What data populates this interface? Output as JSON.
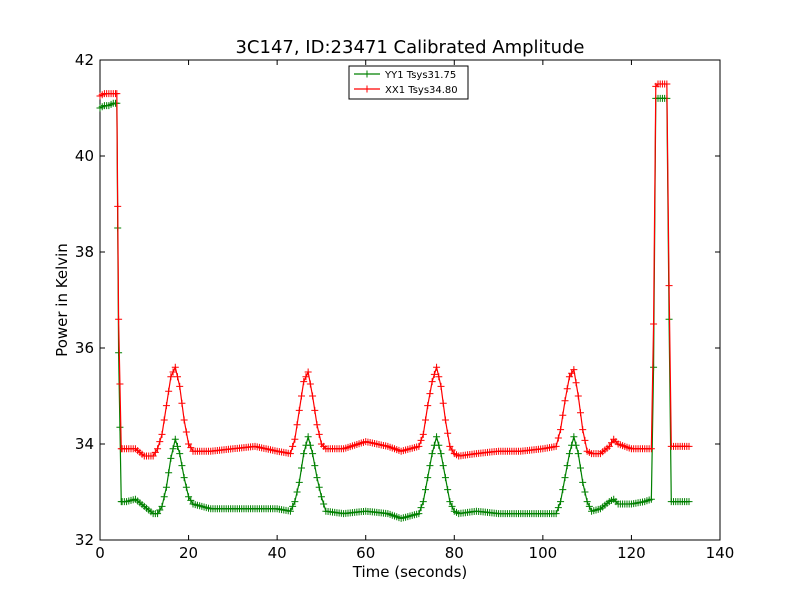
{
  "chart_data": {
    "type": "line",
    "title": "3C147, ID:23471 Calibrated Amplitude",
    "xlabel": "Time (seconds)",
    "ylabel": "Power in Kelvin",
    "xlim": [
      0,
      140
    ],
    "ylim": [
      32,
      42
    ],
    "x_ticks": [
      "0",
      "20",
      "40",
      "60",
      "80",
      "100",
      "120",
      "140"
    ],
    "y_ticks": [
      "32",
      "34",
      "36",
      "38",
      "40",
      "42"
    ],
    "grid": false,
    "legend_position": "top-center",
    "marker": "+",
    "series": [
      {
        "name": "YY1 Tsys31.75",
        "color": "#008000",
        "x": [
          0,
          1,
          2,
          3,
          3.8,
          4.2,
          4.8,
          6,
          8,
          10,
          12,
          13,
          14,
          15,
          16,
          17,
          18,
          19,
          20,
          21,
          25,
          30,
          35,
          40,
          43,
          44,
          45,
          46,
          47,
          48,
          49,
          50,
          51,
          55,
          60,
          65,
          68,
          72,
          73,
          74,
          75,
          76,
          77,
          78,
          79,
          80,
          81,
          85,
          90,
          95,
          100,
          103,
          104,
          105,
          106,
          107,
          108,
          109,
          110,
          111,
          113,
          115,
          116,
          117,
          120,
          123,
          124.5,
          125,
          125.5,
          126,
          127,
          128,
          128.5,
          129,
          130,
          131,
          132,
          133
        ],
        "values": [
          41.0,
          41.05,
          41.05,
          41.1,
          41.1,
          35.9,
          32.8,
          32.8,
          32.85,
          32.7,
          32.55,
          32.55,
          32.7,
          33.1,
          33.7,
          34.1,
          33.8,
          33.3,
          32.9,
          32.75,
          32.65,
          32.65,
          32.65,
          32.65,
          32.6,
          32.8,
          33.2,
          33.8,
          34.15,
          33.8,
          33.3,
          32.9,
          32.6,
          32.55,
          32.6,
          32.55,
          32.45,
          32.55,
          32.8,
          33.3,
          33.8,
          34.15,
          33.8,
          33.3,
          32.8,
          32.6,
          32.55,
          32.6,
          32.55,
          32.55,
          32.55,
          32.55,
          32.8,
          33.3,
          33.8,
          34.15,
          33.8,
          33.2,
          32.8,
          32.6,
          32.65,
          32.8,
          32.85,
          32.75,
          32.75,
          32.8,
          32.85,
          35.6,
          41.2,
          41.2,
          41.2,
          41.2,
          36.6,
          32.8,
          32.8,
          32.8,
          32.8,
          32.8
        ]
      },
      {
        "name": "XX1 Tsys34.80",
        "color": "#ff0000",
        "x": [
          0,
          1,
          2,
          3,
          3.8,
          4.2,
          4.8,
          6,
          8,
          10,
          12,
          13,
          14,
          15,
          16,
          17,
          18,
          19,
          20,
          21,
          25,
          30,
          35,
          40,
          43,
          44,
          45,
          46,
          47,
          48,
          49,
          50,
          51,
          55,
          60,
          65,
          68,
          72,
          73,
          74,
          75,
          76,
          77,
          78,
          79,
          80,
          81,
          85,
          90,
          95,
          100,
          103,
          104,
          105,
          106,
          107,
          108,
          109,
          110,
          111,
          113,
          115,
          116,
          117,
          120,
          123,
          124.5,
          125,
          125.5,
          126,
          127,
          128,
          128.5,
          129,
          130,
          131,
          132,
          133
        ],
        "values": [
          41.25,
          41.3,
          41.3,
          41.3,
          41.3,
          36.6,
          33.9,
          33.9,
          33.9,
          33.75,
          33.75,
          33.9,
          34.2,
          34.8,
          35.4,
          35.6,
          35.2,
          34.5,
          34.0,
          33.85,
          33.85,
          33.9,
          33.95,
          33.85,
          33.8,
          34.1,
          34.7,
          35.3,
          35.5,
          35.0,
          34.4,
          34.0,
          33.9,
          33.9,
          34.05,
          33.95,
          33.85,
          33.95,
          34.2,
          34.8,
          35.3,
          35.6,
          35.2,
          34.5,
          33.95,
          33.8,
          33.75,
          33.8,
          33.85,
          33.85,
          33.9,
          33.95,
          34.3,
          34.9,
          35.4,
          35.55,
          35.0,
          34.3,
          33.85,
          33.8,
          33.8,
          33.95,
          34.1,
          34.0,
          33.9,
          33.9,
          33.9,
          36.5,
          41.45,
          41.5,
          41.5,
          41.5,
          37.3,
          33.95,
          33.95,
          33.95,
          33.95,
          33.95
        ]
      }
    ]
  }
}
